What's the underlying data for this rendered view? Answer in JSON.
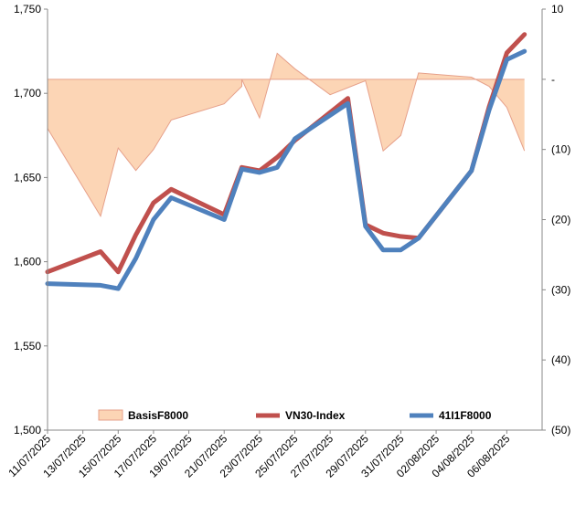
{
  "chart_data": {
    "type": "line",
    "x": [
      "11/07/2025",
      "14/07/2025",
      "15/07/2025",
      "16/07/2025",
      "17/07/2025",
      "18/07/2025",
      "21/07/2025",
      "22/07/2025",
      "23/07/2025",
      "24/07/2025",
      "25/07/2025",
      "28/07/2025",
      "29/07/2025",
      "30/07/2025",
      "31/07/2025",
      "01/08/2025",
      "04/08/2025",
      "05/08/2025",
      "06/08/2025",
      "07/08/2025",
      "08/08/2025"
    ],
    "x_tick_labels": [
      "11/07/2025",
      "13/07/2025",
      "15/07/2025",
      "17/07/2025",
      "19/07/2025",
      "21/07/2025",
      "23/07/2025",
      "25/07/2025",
      "27/07/2025",
      "29/07/2025",
      "31/07/2025",
      "02/08/2025",
      "04/08/2025",
      "06/08/2025"
    ],
    "x_range": [
      "11/07/2025",
      "08/08/2025"
    ],
    "y_left": {
      "ticks": [
        "1,500",
        "1,550",
        "1,600",
        "1,650",
        "1,700",
        "1,750"
      ],
      "min": 1500,
      "max": 1750
    },
    "y_right": {
      "ticks": [
        "10",
        "-",
        "(10)",
        "(20)",
        "(30)",
        "(40)",
        "(50)"
      ],
      "min": -50,
      "max": 10
    },
    "series": [
      {
        "name": "BasisF8000",
        "kind": "area",
        "axis": "right",
        "color": "#fcd5b5",
        "edge_color": "#e6a08a",
        "points": [
          [
            "11/07/2025",
            -7
          ],
          [
            "14/07/2025",
            -19.5
          ],
          [
            "15/07/2025",
            -9.8
          ],
          [
            "16/07/2025",
            -13
          ],
          [
            "17/07/2025",
            -10
          ],
          [
            "18/07/2025",
            -5.8
          ],
          [
            "21/07/2025",
            -3.5
          ],
          [
            "22/07/2025",
            -1
          ],
          [
            "22/07/2025",
            0
          ],
          [
            "23/07/2025",
            -5.5
          ],
          [
            "24/07/2025",
            3.7
          ],
          [
            "25/07/2025",
            1.5
          ],
          [
            "27/07/2025",
            -2.2
          ],
          [
            "29/07/2025",
            -0.2
          ],
          [
            "30/07/2025",
            -10.2
          ],
          [
            "31/07/2025",
            -8
          ],
          [
            "01/08/2025",
            0.9
          ],
          [
            "04/08/2025",
            0.3
          ],
          [
            "05/08/2025",
            -1
          ],
          [
            "06/08/2025",
            -4
          ],
          [
            "07/08/2025",
            -10.2
          ]
        ]
      },
      {
        "name": "VN30-Index",
        "kind": "line",
        "axis": "left",
        "color": "#c0504d",
        "points": [
          [
            "11/07/2025",
            1594
          ],
          [
            "14/07/2025",
            1606
          ],
          [
            "15/07/2025",
            1594
          ],
          [
            "16/07/2025",
            1616
          ],
          [
            "17/07/2025",
            1635
          ],
          [
            "18/07/2025",
            1643
          ],
          [
            "21/07/2025",
            1628
          ],
          [
            "22/07/2025",
            1656
          ],
          [
            "23/07/2025",
            1654
          ],
          [
            "24/07/2025",
            1662
          ],
          [
            "25/07/2025",
            1672
          ],
          [
            "28/07/2025",
            1697
          ],
          [
            "29/07/2025",
            1622
          ],
          [
            "30/07/2025",
            1617
          ],
          [
            "31/07/2025",
            1615
          ],
          [
            "01/08/2025",
            1614
          ],
          [
            "04/08/2025",
            1654
          ],
          [
            "05/08/2025",
            1692
          ],
          [
            "06/08/2025",
            1724
          ],
          [
            "07/08/2025",
            1735
          ]
        ]
      },
      {
        "name": "41I1F8000",
        "kind": "line",
        "axis": "left",
        "color": "#4f81bd",
        "points": [
          [
            "11/07/2025",
            1587
          ],
          [
            "14/07/2025",
            1586
          ],
          [
            "15/07/2025",
            1584
          ],
          [
            "16/07/2025",
            1602
          ],
          [
            "17/07/2025",
            1625
          ],
          [
            "18/07/2025",
            1638
          ],
          [
            "21/07/2025",
            1625
          ],
          [
            "22/07/2025",
            1655
          ],
          [
            "23/07/2025",
            1653
          ],
          [
            "24/07/2025",
            1656
          ],
          [
            "25/07/2025",
            1673
          ],
          [
            "28/07/2025",
            1694
          ],
          [
            "29/07/2025",
            1621
          ],
          [
            "30/07/2025",
            1607
          ],
          [
            "31/07/2025",
            1607
          ],
          [
            "01/08/2025",
            1614
          ],
          [
            "04/08/2025",
            1654
          ],
          [
            "05/08/2025",
            1690
          ],
          [
            "06/08/2025",
            1720
          ],
          [
            "07/08/2025",
            1725
          ]
        ]
      }
    ],
    "legend": {
      "placement": "bottom",
      "items": [
        "BasisF8000",
        "VN30-Index",
        "41I1F8000"
      ]
    },
    "grid": false
  }
}
